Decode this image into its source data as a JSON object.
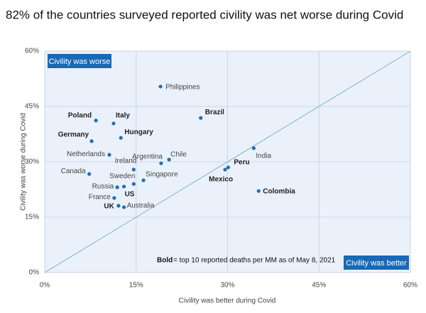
{
  "chart_data": {
    "type": "scatter",
    "title": "82% of the countries surveyed reported civility was net worse during Covid",
    "x_label": "Civility was better during Covid",
    "y_label": "Civility was worse during Covid",
    "annotations": {
      "top_left": "Civility was worse",
      "bottom_right": "Civility was better",
      "note_bold": "Bold",
      "note": "= top 10 reported deaths per MM as of May 8, 2021"
    },
    "series": [
      {
        "color": "#1f6fb5",
        "labels": [
          "Philippines",
          "Poland",
          "Italy",
          "Brazil",
          "Hungary",
          "Germany",
          "Netherlands",
          "India",
          "Ireland",
          "Argentina",
          "Chile",
          "Canada",
          "Peru",
          "Mexico",
          "Sweden",
          "Singapore",
          "Russia",
          "US",
          "Colombia",
          "France",
          "UK",
          "Australia"
        ],
        "x": [
          19.0,
          8.4,
          11.3,
          25.6,
          12.5,
          7.7,
          10.6,
          34.3,
          14.6,
          19.1,
          20.4,
          7.3,
          30.1,
          29.6,
          14.6,
          16.2,
          11.9,
          13.0,
          35.1,
          11.4,
          12.1,
          13.0
        ],
        "values": [
          50.4,
          41.2,
          40.4,
          41.9,
          36.5,
          35.6,
          31.9,
          33.7,
          27.9,
          29.6,
          30.6,
          26.7,
          28.5,
          27.9,
          24.0,
          25.0,
          23.1,
          23.3,
          22.1,
          20.2,
          18.1,
          17.7
        ],
        "bold": [
          false,
          true,
          true,
          true,
          true,
          true,
          false,
          false,
          false,
          false,
          false,
          false,
          true,
          true,
          false,
          false,
          false,
          true,
          true,
          false,
          true,
          false
        ]
      }
    ],
    "xlim": [
      0,
      60
    ],
    "ylim": [
      0,
      60
    ],
    "xticks": [
      {
        "value": 0,
        "label": "0%"
      },
      {
        "value": 15,
        "label": "15%"
      },
      {
        "value": 30,
        "label": "30%"
      },
      {
        "value": 45,
        "label": "45%"
      },
      {
        "value": 60,
        "label": "60%"
      }
    ],
    "yticks": [
      {
        "value": 0,
        "label": "0%"
      },
      {
        "value": 15,
        "label": "15%"
      },
      {
        "value": 30,
        "label": "30%"
      },
      {
        "value": 45,
        "label": "45%"
      },
      {
        "value": 60,
        "label": "60%"
      }
    ],
    "grid": true,
    "diagonal": true
  }
}
